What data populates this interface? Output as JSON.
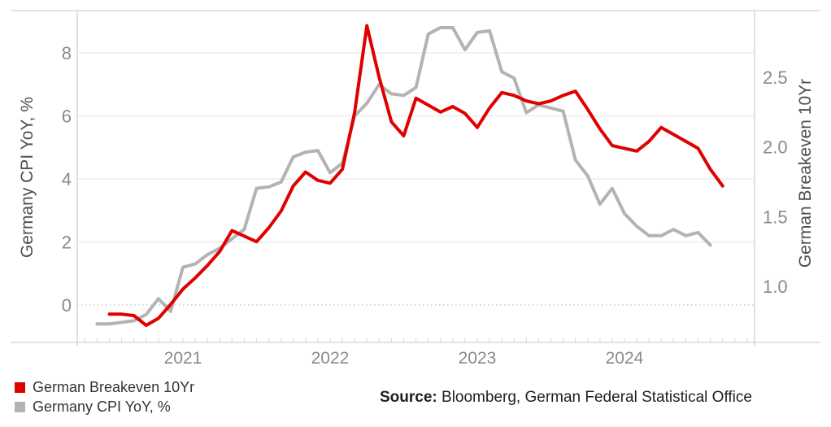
{
  "chart_data": {
    "type": "line",
    "title": "",
    "x_unit": "month",
    "x_range": [
      "2020-06",
      "2024-09"
    ],
    "x_tick_years": [
      2021,
      2022,
      2023,
      2024
    ],
    "left_axis": {
      "title": "Germany CPI YoY, %",
      "ticks": [
        "8",
        "6",
        "4",
        "2",
        "0"
      ],
      "tick_values": [
        8,
        6,
        4,
        2,
        0
      ],
      "ylim": [
        -1.2,
        9.3
      ],
      "zero_line_style": "dotted"
    },
    "right_axis": {
      "title": "German Breakeven 10Yr",
      "ticks": [
        "2.5",
        "2.0",
        "1.5",
        "1.0"
      ],
      "tick_values": [
        2.5,
        2.0,
        1.5,
        1.0
      ],
      "ylim": [
        0.6,
        3.0
      ]
    },
    "grid": "horizontal-light",
    "legend_position": "bottom-left",
    "series": [
      {
        "name": "Germany CPI YoY, %",
        "axis": "left",
        "color": "#b3b3b3",
        "start": "2020-06",
        "values": [
          -0.6,
          -0.6,
          -0.55,
          -0.5,
          -0.3,
          0.2,
          -0.2,
          1.2,
          1.3,
          1.6,
          1.8,
          2.1,
          2.4,
          3.7,
          3.75,
          3.9,
          4.7,
          4.85,
          4.9,
          4.2,
          4.5,
          6.0,
          6.4,
          7.0,
          6.7,
          6.65,
          6.9,
          8.6,
          8.8,
          8.8,
          8.1,
          8.65,
          8.7,
          7.4,
          7.2,
          6.1,
          6.35,
          6.25,
          6.15,
          4.6,
          4.1,
          3.2,
          3.7,
          2.9,
          2.5,
          2.2,
          2.2,
          2.4,
          2.2,
          2.3,
          1.9
        ]
      },
      {
        "name": "German Breakeven 10Yr",
        "axis": "right",
        "color": "#e00000",
        "start": "2020-07",
        "values": [
          0.8,
          0.8,
          0.79,
          0.72,
          0.77,
          0.87,
          0.98,
          1.06,
          1.15,
          1.25,
          1.4,
          1.36,
          1.32,
          1.42,
          1.54,
          1.72,
          1.82,
          1.76,
          1.74,
          1.84,
          2.25,
          2.87,
          2.5,
          2.18,
          2.08,
          2.35,
          2.3,
          2.25,
          2.29,
          2.24,
          2.14,
          2.28,
          2.39,
          2.37,
          2.33,
          2.31,
          2.33,
          2.37,
          2.4,
          2.27,
          2.13,
          2.01,
          1.99,
          1.97,
          2.04,
          2.14,
          2.09,
          2.04,
          1.99,
          1.84,
          1.72
        ]
      }
    ]
  },
  "legend": {
    "items": [
      {
        "label": "German Breakeven 10Yr",
        "color": "#e00000"
      },
      {
        "label": "Germany CPI YoY, %",
        "color": "#b3b3b3"
      }
    ]
  },
  "source": {
    "label": "Source:",
    "text": " Bloomberg, German Federal Statistical Office"
  },
  "colors": {
    "gridline": "#ededed",
    "frame": "#d9d9d9",
    "zero_dotted": "#c9c9c9",
    "tick_label": "#8a8a8a",
    "axis_title": "#4d4d4d"
  }
}
